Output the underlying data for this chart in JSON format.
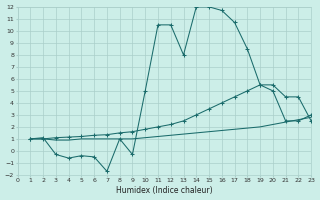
{
  "xlabel": "Humidex (Indice chaleur)",
  "bg_color": "#cceee8",
  "grid_color": "#aacfca",
  "line_color": "#1a6b6b",
  "xlim": [
    0,
    23
  ],
  "ylim": [
    -2,
    12
  ],
  "xticks": [
    0,
    1,
    2,
    3,
    4,
    5,
    6,
    7,
    8,
    9,
    10,
    11,
    12,
    13,
    14,
    15,
    16,
    17,
    18,
    19,
    20,
    21,
    22,
    23
  ],
  "yticks": [
    -2,
    -1,
    0,
    1,
    2,
    3,
    4,
    5,
    6,
    7,
    8,
    9,
    10,
    11,
    12
  ],
  "curve1_x": [
    1,
    2,
    3,
    4,
    5,
    6,
    7,
    8,
    9,
    10,
    11,
    12,
    13,
    14,
    15,
    16,
    17,
    18,
    19,
    20,
    21,
    22,
    23
  ],
  "curve1_y": [
    1.0,
    1.1,
    -0.3,
    -0.6,
    -0.4,
    -0.5,
    -1.7,
    1.0,
    -0.3,
    5.0,
    10.5,
    10.5,
    8.0,
    12.0,
    12.0,
    11.7,
    10.7,
    8.5,
    5.5,
    5.0,
    2.5,
    2.5,
    3.0
  ],
  "curve2_x": [
    1,
    2,
    3,
    4,
    5,
    6,
    7,
    8,
    9,
    10,
    11,
    12,
    13,
    14,
    15,
    16,
    17,
    18,
    19,
    20,
    21,
    22,
    23
  ],
  "curve2_y": [
    1.0,
    1.0,
    1.1,
    1.15,
    1.2,
    1.3,
    1.35,
    1.5,
    1.6,
    1.8,
    2.0,
    2.2,
    2.5,
    3.0,
    3.5,
    4.0,
    4.5,
    5.0,
    5.5,
    5.5,
    4.5,
    4.5,
    2.5
  ],
  "curve3_x": [
    1,
    2,
    3,
    4,
    5,
    6,
    7,
    8,
    9,
    10,
    11,
    12,
    13,
    14,
    15,
    16,
    17,
    18,
    19,
    20,
    21,
    22,
    23
  ],
  "curve3_y": [
    1.0,
    1.0,
    0.9,
    0.9,
    1.0,
    1.0,
    1.0,
    1.0,
    1.0,
    1.1,
    1.2,
    1.3,
    1.4,
    1.5,
    1.6,
    1.7,
    1.8,
    1.9,
    2.0,
    2.2,
    2.4,
    2.6,
    2.8
  ]
}
